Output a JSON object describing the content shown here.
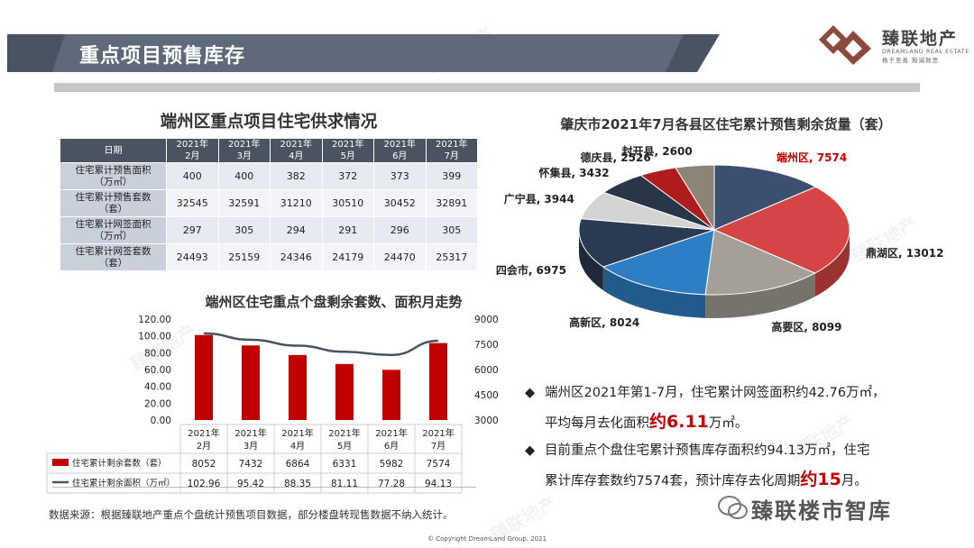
{
  "header": {
    "title": "重点项目预售库存"
  },
  "logo": {
    "cn": "臻联地产",
    "en": "DREAMLAND REAL ESTATE",
    "tagline": "格于至善 殷诚致思"
  },
  "watermark": "臻联地产",
  "supply_table": {
    "title": "端州区重点项目住宅供求情况",
    "corner": "日期",
    "months": [
      [
        "2021年",
        "2月"
      ],
      [
        "2021年",
        "3月"
      ],
      [
        "2021年",
        "4月"
      ],
      [
        "2021年",
        "5月"
      ],
      [
        "2021年",
        "6月"
      ],
      [
        "2021年",
        "7月"
      ]
    ],
    "rows": [
      {
        "label": [
          "住宅累计预售面积",
          "（万㎡）"
        ],
        "values": [
          "400",
          "400",
          "382",
          "372",
          "373",
          "399"
        ]
      },
      {
        "label": [
          "住宅累计预售套数",
          "（套）"
        ],
        "values": [
          "32545",
          "32591",
          "31210",
          "30510",
          "30452",
          "32891"
        ]
      },
      {
        "label": [
          "住宅累计网签面积",
          "（万㎡）"
        ],
        "values": [
          "297",
          "305",
          "294",
          "291",
          "296",
          "305"
        ]
      },
      {
        "label": [
          "住宅累计网签套数",
          "（套）"
        ],
        "values": [
          "24493",
          "25159",
          "24346",
          "24179",
          "24470",
          "25317"
        ]
      }
    ]
  },
  "source_note": "数据来源：根据臻联地产重点个盘统计预售项目数据，部分楼盘转现售数据不纳入统计。",
  "bullets": {
    "b1": {
      "line1": "端州区2021年第1-7月，住宅累计网签面积约42.76万㎡，",
      "line2_pre": "平均每月去化面积",
      "line2_big": "约6.11",
      "line2_post": "万㎡。"
    },
    "b2": {
      "line1": "目前重点个盘住宅累计预售库存面积约94.13万㎡，住宅",
      "line2_pre": "累计库存套数约7574套，预计库存去化周期",
      "line2_big": "约15",
      "line2_post": "月。"
    }
  },
  "footer": "© Copyright  DreamLand Group, 2021",
  "wechat": "臻联楼市智库",
  "colors": {
    "header": "#4a5360",
    "accent_red": "#c00000",
    "bar": "#c00000",
    "line": "#4a5360"
  },
  "chart_data": [
    {
      "type": "bar",
      "title": "端州区住宅重点个盘剩余套数、面积月走势",
      "categories": [
        [
          "2021年",
          "2月"
        ],
        [
          "2021年",
          "3月"
        ],
        [
          "2021年",
          "4月"
        ],
        [
          "2021年",
          "5月"
        ],
        [
          "2021年",
          "6月"
        ],
        [
          "2021年",
          "7月"
        ]
      ],
      "y_left": {
        "ylim": [
          0,
          120
        ],
        "ticks": [
          "0.00",
          "20.00",
          "40.00",
          "60.00",
          "80.00",
          "100.00",
          "120.00"
        ]
      },
      "y_right": {
        "ylim": [
          3000,
          9000
        ],
        "ticks": [
          "3000",
          "4500",
          "6000",
          "7500",
          "9000"
        ]
      },
      "series": [
        {
          "name": "住宅累计剩余套数（套）",
          "kind": "bar",
          "axis": "right",
          "values": [
            8052,
            7432,
            6864,
            6331,
            5982,
            7574
          ],
          "labels": [
            "8052",
            "7432",
            "6864",
            "6331",
            "5982",
            "7574"
          ]
        },
        {
          "name": "住宅累计剩余面积（万㎡）",
          "kind": "line",
          "axis": "left",
          "values": [
            102.96,
            95.42,
            88.35,
            81.11,
            77.28,
            94.13
          ],
          "labels": [
            "102.96",
            "95.42",
            "88.35",
            "81.11",
            "77.28",
            "94.13"
          ]
        }
      ]
    },
    {
      "type": "pie",
      "title": "肇庆市2021年7月各县区住宅累计预售剩余货量（套）",
      "slices": [
        {
          "label": "端州区",
          "value": 7574,
          "color": "#3d4f6e",
          "text": "端州区, 7574"
        },
        {
          "label": "鼎湖区",
          "value": 13012,
          "color": "#d64545",
          "text": "鼎湖区, 13012"
        },
        {
          "label": "高要区",
          "value": 8099,
          "color": "#a4a097",
          "text": "高要区, 8099"
        },
        {
          "label": "高新区",
          "value": 8024,
          "color": "#2e7ec4",
          "text": "高新区, 8024"
        },
        {
          "label": "四会市",
          "value": 6975,
          "color": "#2a3a52",
          "text": "四会市, 6975"
        },
        {
          "label": "广宁县",
          "value": 3944,
          "color": "#d4d4d4",
          "text": "广宁县, 3944"
        },
        {
          "label": "怀集县",
          "value": 3432,
          "color": "#283648",
          "text": "怀集县, 3432"
        },
        {
          "label": "德庆县",
          "value": 2526,
          "color": "#b01c1c",
          "text": "德庆县, 2526"
        },
        {
          "label": "封开县",
          "value": 2600,
          "color": "#8a8577",
          "text": "封开县, 2600"
        }
      ]
    }
  ]
}
